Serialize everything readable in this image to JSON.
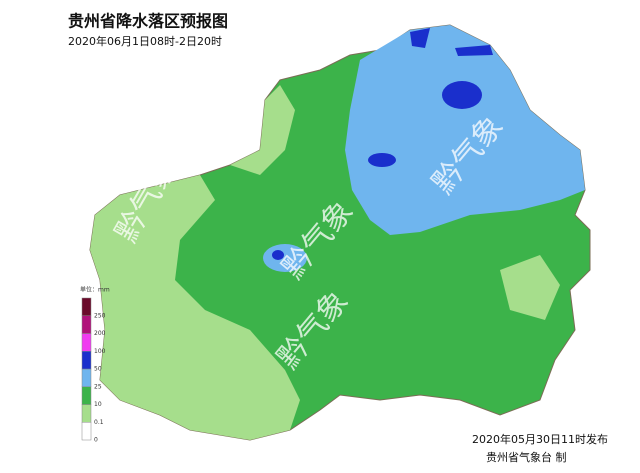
{
  "header": {
    "title": "贵州省降水落区预报图",
    "subtitle": "2020年06月1日08时-2日20时"
  },
  "watermarks": [
    "黔气象",
    "黔气象",
    "黔气象",
    "黔气象"
  ],
  "legend": {
    "unit": "单位：mm",
    "ticks": [
      0,
      0.1,
      10,
      25,
      50,
      100,
      200,
      250
    ],
    "colors": [
      "#ffffff",
      "#a6de8c",
      "#3cb34a",
      "#6fb5ee",
      "#1a2fcc",
      "#f03cf0",
      "#b0127a",
      "#6a0a2a"
    ]
  },
  "footer": {
    "issued": "2020年05月30日11时发布",
    "issuer": "贵州省气象台 制"
  }
}
